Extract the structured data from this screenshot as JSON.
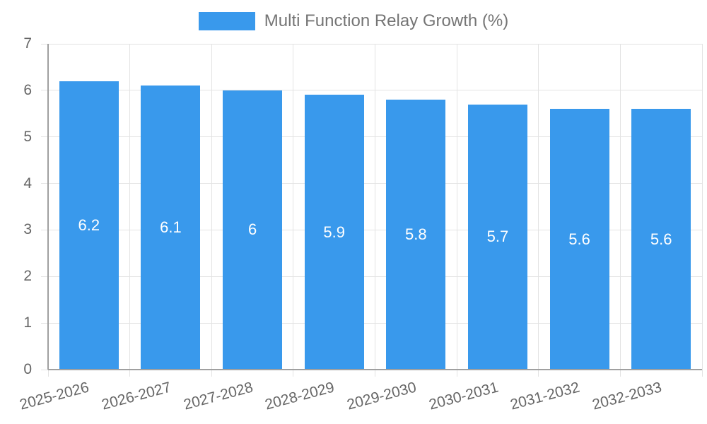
{
  "chart_data": {
    "type": "bar",
    "title": "Multi Function Relay Growth (%)",
    "series_name": "Multi Function Relay Growth (%)",
    "categories": [
      "2025-2026",
      "2026-2027",
      "2027-2028",
      "2028-2029",
      "2029-2030",
      "2030-2031",
      "2031-2032",
      "2032-2033"
    ],
    "values": [
      6.2,
      6.1,
      6,
      5.9,
      5.8,
      5.7,
      5.6,
      5.6
    ],
    "bar_labels": [
      "6.2",
      "6.1",
      "6",
      "5.9",
      "5.8",
      "5.7",
      "5.6",
      "5.6"
    ],
    "xlabel": "",
    "ylabel": "",
    "ylim": [
      0,
      7
    ],
    "yticks": [
      0,
      1,
      2,
      3,
      4,
      5,
      6,
      7
    ],
    "grid": true,
    "legend_position": "top",
    "x_tick_rotation_deg": -15,
    "colors": {
      "bar": "#3999ec",
      "value_label": "#ffffff",
      "axis_text": "#666666",
      "legend_text": "#757575",
      "grid_line": "#e3e3e3",
      "axis_line": "#a0a0a0",
      "background": "#ffffff"
    }
  }
}
